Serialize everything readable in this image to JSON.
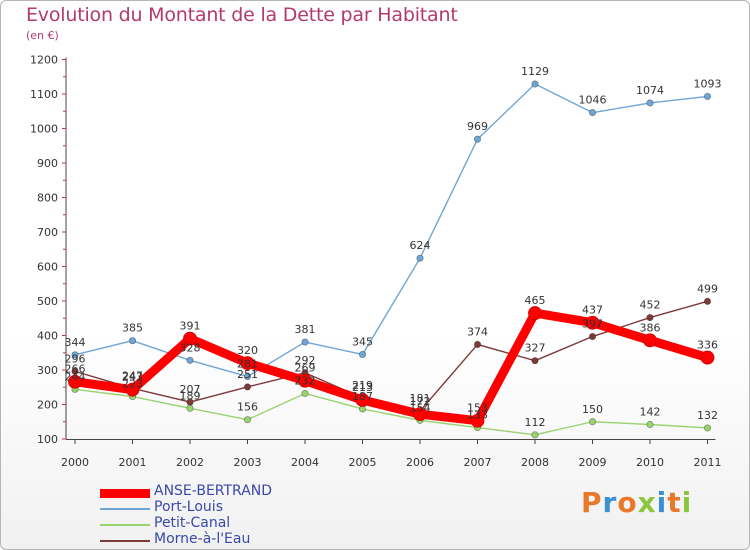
{
  "title": "Evolution du Montant de la Dette par Habitant",
  "subtitle": "(en €)",
  "logo": {
    "text": "Proxiti",
    "colors": [
      "#e8792b",
      "#3c8fd1",
      "#e8792b",
      "#8cc63f",
      "#3c8fd1",
      "#e8792b",
      "#8cc63f"
    ]
  },
  "chart_data": {
    "type": "line",
    "x": [
      "2000",
      "2001",
      "2002",
      "2003",
      "2004",
      "2005",
      "2006",
      "2007",
      "2008",
      "2009",
      "2010",
      "2011"
    ],
    "ylim": [
      100,
      1200
    ],
    "yticks": [
      "100",
      "200",
      "300",
      "400",
      "500",
      "600",
      "700",
      "800",
      "900",
      "1000",
      "1100",
      "1200"
    ],
    "grid": false,
    "legend_position": "bottom-left",
    "series": [
      {
        "name": "Port-Louis",
        "color": "#6fa6d6",
        "values": [
          344,
          385,
          328,
          281,
          381,
          345,
          624,
          969,
          1129,
          1046,
          1074,
          1093
        ],
        "labels": [
          "344",
          "385",
          "328",
          "281",
          "381",
          "345",
          "624",
          "969",
          "1129",
          "1046",
          "1074",
          "1093"
        ]
      },
      {
        "name": "Petit-Canal",
        "color": "#99d36f",
        "values": [
          244,
          223,
          189,
          156,
          232,
          187,
          154,
          133,
          112,
          150,
          142,
          132
        ],
        "labels": [
          "244",
          "223",
          "189",
          "156",
          "232",
          "187",
          "154",
          "133",
          "112",
          "150",
          "142",
          "132"
        ]
      },
      {
        "name": "Morne-à-l'Eau",
        "color": "#7d3a3a",
        "values": [
          296,
          247,
          207,
          251,
          292,
          219,
          181,
          374,
          327,
          397,
          452,
          499
        ],
        "labels": [
          "296",
          "247",
          "207",
          "251",
          "292",
          "219",
          "181",
          "374",
          "327",
          "397",
          "452",
          "499"
        ]
      },
      {
        "name": "ANSE-BERTRAND",
        "color": "#ff0000",
        "values": [
          266,
          243,
          391,
          320,
          269,
          213,
          172,
          153,
          465,
          437,
          386,
          336
        ],
        "labels": [
          "266",
          "243",
          "391",
          "320",
          "269",
          "213",
          "172",
          "153",
          "465",
          "437",
          "386",
          "336"
        ]
      }
    ]
  }
}
